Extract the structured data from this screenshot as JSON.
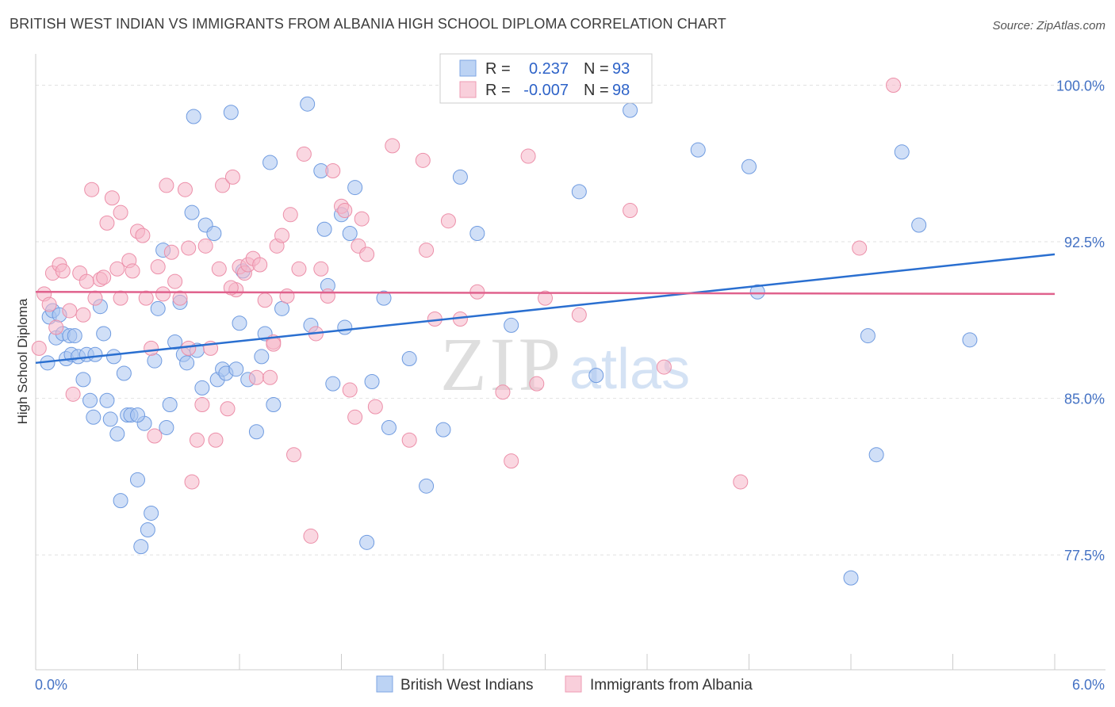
{
  "header": {
    "title": "BRITISH WEST INDIAN VS IMMIGRANTS FROM ALBANIA HIGH SCHOOL DIPLOMA CORRELATION CHART",
    "source": "Source: ZipAtlas.com"
  },
  "watermark": {
    "zip": "ZIP",
    "atlas": "atlas"
  },
  "legend_box": {
    "series1": {
      "r_label": "R =",
      "r_value": "0.237",
      "n_label": "N =",
      "n_value": "93"
    },
    "series2": {
      "r_label": "R =",
      "r_value": "-0.007",
      "n_label": "N =",
      "n_value": "98"
    }
  },
  "chart_data": {
    "type": "scatter",
    "title": "BRITISH WEST INDIAN VS IMMIGRANTS FROM ALBANIA HIGH SCHOOL DIPLOMA CORRELATION CHART",
    "xlabel": "",
    "ylabel": "High School Diploma",
    "xlim": [
      0,
      6
    ],
    "ylim": [
      72.0,
      101.5
    ],
    "x_tick_labels": [
      "0.0%",
      "6.0%"
    ],
    "y_ticks": [
      77.5,
      85.0,
      92.5,
      100.0
    ],
    "y_tick_labels": [
      "77.5%",
      "85.0%",
      "92.5%",
      "100.0%"
    ],
    "grid": "horizontal dashed",
    "legend_position": "bottom-center",
    "series": [
      {
        "name": "British West Indians",
        "color": "#a9c4f0",
        "edge_color": "#6f9be0",
        "trend_color": "#2a6fd0",
        "trend": {
          "x": [
            0,
            6
          ],
          "y": [
            86.7,
            91.9
          ]
        },
        "points": [
          [
            0.07,
            86.7
          ],
          [
            0.08,
            88.9
          ],
          [
            0.1,
            89.2
          ],
          [
            0.12,
            87.9
          ],
          [
            0.14,
            89.0
          ],
          [
            0.16,
            88.1
          ],
          [
            0.18,
            86.9
          ],
          [
            0.2,
            88.0
          ],
          [
            0.21,
            87.1
          ],
          [
            0.23,
            88.0
          ],
          [
            0.25,
            87.0
          ],
          [
            0.28,
            85.9
          ],
          [
            0.3,
            87.1
          ],
          [
            0.32,
            84.9
          ],
          [
            0.34,
            84.1
          ],
          [
            0.38,
            89.4
          ],
          [
            0.4,
            88.1
          ],
          [
            0.42,
            84.9
          ],
          [
            0.44,
            84.0
          ],
          [
            0.46,
            87.0
          ],
          [
            0.48,
            83.3
          ],
          [
            0.5,
            80.1
          ],
          [
            0.52,
            86.2
          ],
          [
            0.54,
            84.2
          ],
          [
            0.56,
            84.2
          ],
          [
            0.6,
            81.1
          ],
          [
            0.62,
            77.9
          ],
          [
            0.64,
            83.8
          ],
          [
            0.66,
            78.7
          ],
          [
            0.68,
            79.5
          ],
          [
            0.7,
            86.8
          ],
          [
            0.72,
            89.3
          ],
          [
            0.75,
            92.1
          ],
          [
            0.77,
            83.6
          ],
          [
            0.79,
            84.7
          ],
          [
            0.82,
            87.7
          ],
          [
            0.85,
            89.6
          ],
          [
            0.87,
            87.1
          ],
          [
            0.89,
            86.7
          ],
          [
            0.92,
            93.9
          ],
          [
            0.93,
            98.5
          ],
          [
            0.95,
            87.3
          ],
          [
            0.98,
            85.5
          ],
          [
            1.0,
            93.3
          ],
          [
            1.05,
            92.9
          ],
          [
            1.07,
            85.9
          ],
          [
            1.1,
            86.4
          ],
          [
            1.12,
            86.2
          ],
          [
            1.15,
            98.7
          ],
          [
            1.18,
            86.4
          ],
          [
            1.2,
            88.6
          ],
          [
            1.22,
            91.1
          ],
          [
            1.25,
            85.9
          ],
          [
            1.3,
            83.4
          ],
          [
            1.33,
            87.0
          ],
          [
            1.35,
            88.1
          ],
          [
            1.38,
            96.3
          ],
          [
            1.4,
            84.7
          ],
          [
            1.45,
            89.3
          ],
          [
            1.6,
            99.1
          ],
          [
            1.62,
            88.5
          ],
          [
            1.68,
            95.9
          ],
          [
            1.7,
            93.1
          ],
          [
            1.72,
            90.4
          ],
          [
            1.75,
            85.7
          ],
          [
            1.8,
            93.8
          ],
          [
            1.82,
            88.4
          ],
          [
            1.85,
            92.9
          ],
          [
            1.88,
            95.1
          ],
          [
            1.95,
            78.1
          ],
          [
            1.98,
            85.8
          ],
          [
            2.05,
            89.8
          ],
          [
            2.08,
            83.6
          ],
          [
            2.2,
            86.9
          ],
          [
            2.3,
            80.8
          ],
          [
            2.4,
            83.5
          ],
          [
            2.5,
            95.6
          ],
          [
            2.6,
            92.9
          ],
          [
            2.8,
            88.5
          ],
          [
            3.2,
            94.9
          ],
          [
            3.3,
            86.1
          ],
          [
            3.9,
            96.9
          ],
          [
            4.2,
            96.1
          ],
          [
            4.25,
            90.1
          ],
          [
            4.8,
            76.4
          ],
          [
            4.9,
            88.0
          ],
          [
            4.95,
            82.3
          ],
          [
            5.1,
            96.8
          ],
          [
            5.2,
            93.3
          ],
          [
            5.5,
            87.8
          ],
          [
            3.5,
            98.8
          ],
          [
            0.6,
            84.2
          ],
          [
            0.35,
            87.1
          ]
        ]
      },
      {
        "name": "Immigrants from Albania",
        "color": "#f5b7c8",
        "edge_color": "#ec8fa9",
        "trend_color": "#e0628d",
        "trend": {
          "x": [
            0,
            6
          ],
          "y": [
            90.1,
            90.0
          ]
        },
        "points": [
          [
            0.02,
            87.4
          ],
          [
            0.05,
            90.0
          ],
          [
            0.08,
            89.5
          ],
          [
            0.1,
            91.0
          ],
          [
            0.12,
            88.4
          ],
          [
            0.14,
            91.4
          ],
          [
            0.16,
            91.1
          ],
          [
            0.2,
            89.2
          ],
          [
            0.22,
            85.2
          ],
          [
            0.26,
            91.0
          ],
          [
            0.28,
            89.0
          ],
          [
            0.3,
            90.6
          ],
          [
            0.33,
            95.0
          ],
          [
            0.35,
            89.8
          ],
          [
            0.38,
            90.7
          ],
          [
            0.4,
            90.8
          ],
          [
            0.42,
            93.4
          ],
          [
            0.45,
            94.6
          ],
          [
            0.48,
            91.2
          ],
          [
            0.5,
            93.9
          ],
          [
            0.55,
            91.6
          ],
          [
            0.57,
            91.1
          ],
          [
            0.6,
            93.0
          ],
          [
            0.63,
            92.8
          ],
          [
            0.65,
            89.8
          ],
          [
            0.68,
            87.4
          ],
          [
            0.7,
            83.2
          ],
          [
            0.72,
            91.3
          ],
          [
            0.75,
            90.0
          ],
          [
            0.77,
            95.2
          ],
          [
            0.8,
            92.0
          ],
          [
            0.82,
            90.6
          ],
          [
            0.85,
            89.8
          ],
          [
            0.88,
            95.0
          ],
          [
            0.9,
            92.2
          ],
          [
            0.92,
            81.0
          ],
          [
            0.95,
            83.0
          ],
          [
            0.98,
            84.7
          ],
          [
            1.0,
            92.3
          ],
          [
            1.03,
            87.4
          ],
          [
            1.06,
            83.0
          ],
          [
            1.08,
            91.2
          ],
          [
            1.1,
            95.2
          ],
          [
            1.13,
            84.5
          ],
          [
            1.16,
            95.6
          ],
          [
            1.18,
            90.2
          ],
          [
            1.2,
            91.3
          ],
          [
            1.23,
            91.0
          ],
          [
            1.25,
            91.4
          ],
          [
            1.28,
            91.7
          ],
          [
            1.3,
            86.0
          ],
          [
            1.32,
            91.4
          ],
          [
            1.35,
            89.7
          ],
          [
            1.38,
            86.0
          ],
          [
            1.4,
            87.7
          ],
          [
            1.42,
            92.3
          ],
          [
            1.45,
            92.8
          ],
          [
            1.48,
            89.9
          ],
          [
            1.5,
            93.8
          ],
          [
            1.52,
            82.3
          ],
          [
            1.55,
            91.2
          ],
          [
            1.58,
            96.7
          ],
          [
            1.62,
            78.4
          ],
          [
            1.65,
            88.1
          ],
          [
            1.68,
            91.2
          ],
          [
            1.72,
            89.9
          ],
          [
            1.75,
            95.9
          ],
          [
            1.8,
            94.2
          ],
          [
            1.82,
            94.0
          ],
          [
            1.85,
            85.4
          ],
          [
            1.88,
            84.1
          ],
          [
            1.9,
            92.3
          ],
          [
            1.92,
            93.6
          ],
          [
            1.95,
            91.9
          ],
          [
            2.0,
            84.6
          ],
          [
            2.1,
            97.1
          ],
          [
            2.2,
            83.0
          ],
          [
            2.28,
            96.4
          ],
          [
            2.35,
            88.8
          ],
          [
            2.43,
            93.5
          ],
          [
            2.5,
            88.8
          ],
          [
            2.6,
            90.1
          ],
          [
            2.75,
            85.3
          ],
          [
            2.8,
            82.0
          ],
          [
            2.9,
            96.6
          ],
          [
            2.95,
            85.7
          ],
          [
            3.0,
            89.8
          ],
          [
            3.2,
            89.0
          ],
          [
            3.5,
            94.0
          ],
          [
            3.7,
            86.5
          ],
          [
            4.15,
            81.0
          ],
          [
            4.85,
            92.2
          ],
          [
            5.05,
            100.0
          ],
          [
            0.9,
            87.4
          ],
          [
            1.4,
            87.6
          ],
          [
            1.15,
            90.3
          ],
          [
            0.5,
            89.8
          ],
          [
            2.3,
            92.1
          ]
        ]
      }
    ]
  }
}
